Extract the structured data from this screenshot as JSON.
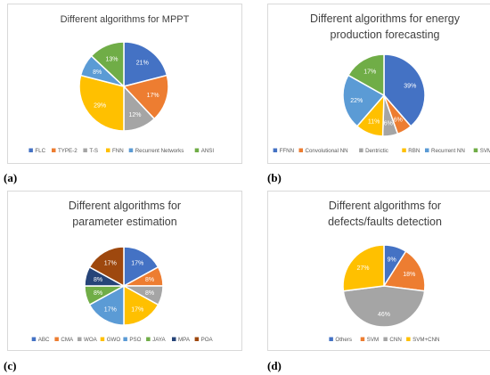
{
  "colors": {
    "blue": "#4472C4",
    "orange": "#ED7D31",
    "gray": "#A5A5A5",
    "gold": "#FFC000",
    "lightblue": "#5B9BD5",
    "green": "#70AD47",
    "navy": "#264478",
    "brown": "#9E480E"
  },
  "panel_labels": [
    "(a)",
    "(b)",
    "(c)",
    "(d)"
  ],
  "chart_data": [
    {
      "type": "pie",
      "title": "Different algorithms for MPPT",
      "categories": [
        "FLC",
        "TYPE-2",
        "T-S",
        "FNN",
        "Recurrent Networks",
        "ANSI"
      ],
      "values": [
        21,
        17,
        12,
        29,
        8,
        13
      ],
      "labels": [
        "21%",
        "17%",
        "12%",
        "29%",
        "8%",
        "13%"
      ],
      "colors": [
        "#4472C4",
        "#ED7D31",
        "#A5A5A5",
        "#FFC000",
        "#5B9BD5",
        "#70AD47"
      ],
      "legend": "bottom"
    },
    {
      "type": "pie",
      "title": "Different algorithms for energy production forecasting",
      "categories": [
        "FFNN",
        "Convolutional NN",
        "Dentrictic",
        "RBN",
        "Recurrent NN",
        "SVM"
      ],
      "values": [
        39,
        6,
        6,
        11,
        22,
        17
      ],
      "labels": [
        "39%",
        "6%",
        "6%",
        "11%",
        "22%",
        "17%"
      ],
      "colors": [
        "#4472C4",
        "#ED7D31",
        "#A5A5A5",
        "#FFC000",
        "#5B9BD5",
        "#70AD47"
      ],
      "legend": "bottom"
    },
    {
      "type": "pie",
      "title": "Different algorithms for parameter estimation",
      "categories": [
        "ABC",
        "CMA",
        "WOA",
        "GWO",
        "PSO",
        "JAYA",
        "MPA",
        "POA"
      ],
      "values": [
        17,
        8,
        8,
        17,
        17,
        8,
        8,
        17
      ],
      "labels": [
        "17%",
        "8%",
        "8%",
        "17%",
        "17%",
        "8%",
        "8%",
        "17%"
      ],
      "colors": [
        "#4472C4",
        "#ED7D31",
        "#A5A5A5",
        "#FFC000",
        "#5B9BD5",
        "#70AD47",
        "#264478",
        "#9E480E"
      ],
      "legend": "bottom"
    },
    {
      "type": "pie",
      "title": "Different algorithms for defects/faults detection",
      "categories": [
        "Others",
        "SVM",
        "CNN",
        "SVM+CNN"
      ],
      "values": [
        9,
        18,
        46,
        27
      ],
      "labels": [
        "9%",
        "18%",
        "46%",
        "27%"
      ],
      "colors": [
        "#4472C4",
        "#ED7D31",
        "#A5A5A5",
        "#FFC000"
      ],
      "legend": "bottom"
    }
  ]
}
